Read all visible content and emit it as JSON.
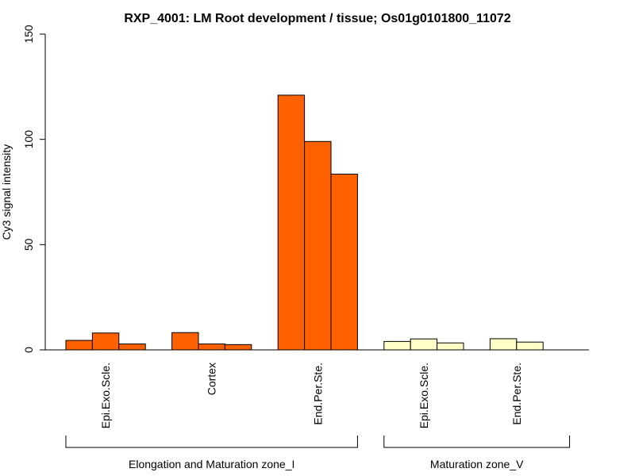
{
  "chart_data": {
    "type": "bar",
    "title": "RXP_4001: LM Root development / tissue; Os01g0101800_11072",
    "ylabel": "Cy3 signal intensity",
    "xlabel": "",
    "ylim": [
      0,
      150
    ],
    "yticks": [
      0,
      50,
      100,
      150
    ],
    "grid": false,
    "legend": "none",
    "categories": [
      "Epi.Exo.Scle.",
      "Cortex",
      "End.Per.Ste.",
      "Epi.Exo.Scle.",
      "End.Per.Ste."
    ],
    "groups": [
      {
        "name": "Elongation and Maturation zone_I",
        "categories": [
          0,
          1,
          2
        ]
      },
      {
        "name": "Maturation zone_V",
        "categories": [
          3,
          4
        ]
      }
    ],
    "colors": {
      "zone_I": "#FF6100",
      "zone_V": "#FFFFC8",
      "axis": "#000000"
    },
    "bars": [
      {
        "category": 0,
        "group": 0,
        "value": 4.5
      },
      {
        "category": 0,
        "group": 0,
        "value": 8.0
      },
      {
        "category": 0,
        "group": 0,
        "value": 2.8
      },
      {
        "category": 1,
        "group": 0,
        "value": 8.2
      },
      {
        "category": 1,
        "group": 0,
        "value": 2.8
      },
      {
        "category": 1,
        "group": 0,
        "value": 2.5
      },
      {
        "category": 2,
        "group": 0,
        "value": 121
      },
      {
        "category": 2,
        "group": 0,
        "value": 99
      },
      {
        "category": 2,
        "group": 0,
        "value": 83.5
      },
      {
        "category": 3,
        "group": 1,
        "value": 4.0
      },
      {
        "category": 3,
        "group": 1,
        "value": 5.2
      },
      {
        "category": 3,
        "group": 1,
        "value": 3.3
      },
      {
        "category": 4,
        "group": 1,
        "value": 5.3
      },
      {
        "category": 4,
        "group": 1,
        "value": 3.7
      }
    ]
  }
}
